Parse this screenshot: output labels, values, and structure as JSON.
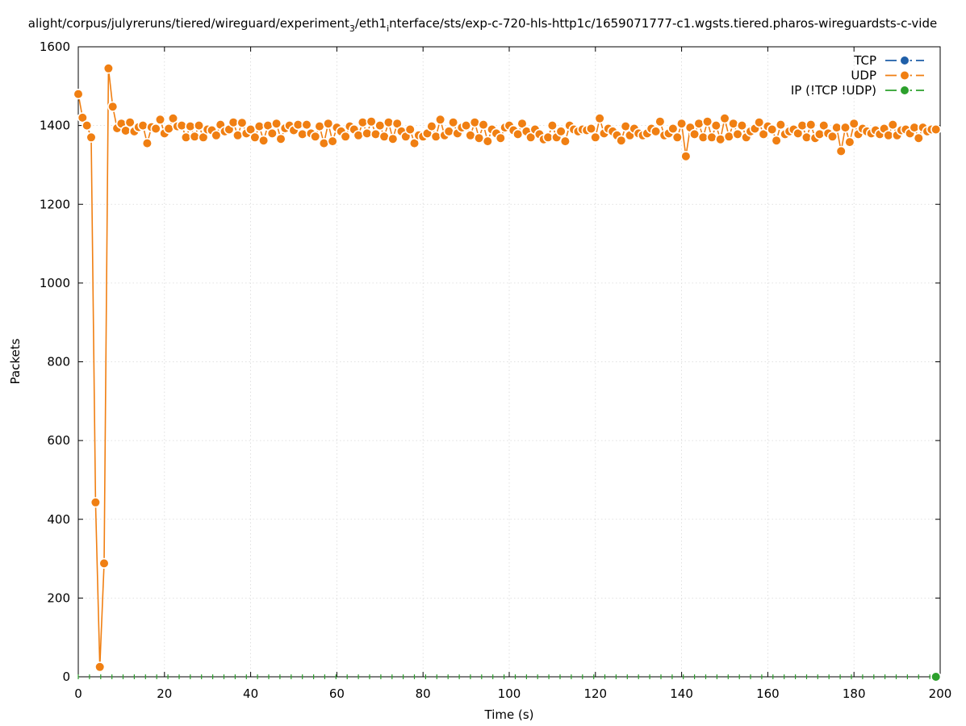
{
  "chart_data": {
    "type": "line",
    "title": "alight/corpus/julyreruns/tiered/wireguard/experiment",
    "title_sub1": "3",
    "title_mid": "/eth1",
    "title_sub2": "i",
    "title_end": "nterface/sts/exp-c-720-hls-http1c/1659071777-c1.wgsts.tiered.pharos-wireguardsts-c-vide",
    "xlabel": "Time (s)",
    "ylabel": "Packets",
    "xlim": [
      0,
      200
    ],
    "ylim": [
      0,
      1600
    ],
    "xticks": [
      0,
      20,
      40,
      60,
      80,
      100,
      120,
      140,
      160,
      180,
      200
    ],
    "yticks": [
      0,
      200,
      400,
      600,
      800,
      1000,
      1200,
      1400,
      1600
    ],
    "xtick_labels": [
      "0",
      "20",
      "40",
      "60",
      "80",
      "100",
      "120",
      "140",
      "160",
      "180",
      "200"
    ],
    "ytick_labels": [
      "0",
      "200",
      "400",
      "600",
      "800",
      "1000",
      "1200",
      "1400",
      "1600"
    ],
    "grid": true,
    "legend_position": "top-right",
    "series": [
      {
        "name": "TCP",
        "color": "#1f5fa8",
        "x": [],
        "values": []
      },
      {
        "name": "UDP",
        "color": "#f07f12",
        "x": [
          0,
          1,
          2,
          3,
          4,
          5,
          6,
          7,
          8,
          9,
          10,
          11,
          12,
          13,
          14,
          15,
          16,
          17,
          18,
          19,
          20,
          21,
          22,
          23,
          24,
          25,
          26,
          27,
          28,
          29,
          30,
          31,
          32,
          33,
          34,
          35,
          36,
          37,
          38,
          39,
          40,
          41,
          42,
          43,
          44,
          45,
          46,
          47,
          48,
          49,
          50,
          51,
          52,
          53,
          54,
          55,
          56,
          57,
          58,
          59,
          60,
          61,
          62,
          63,
          64,
          65,
          66,
          67,
          68,
          69,
          70,
          71,
          72,
          73,
          74,
          75,
          76,
          77,
          78,
          79,
          80,
          81,
          82,
          83,
          84,
          85,
          86,
          87,
          88,
          89,
          90,
          91,
          92,
          93,
          94,
          95,
          96,
          97,
          98,
          99,
          100,
          101,
          102,
          103,
          104,
          105,
          106,
          107,
          108,
          109,
          110,
          111,
          112,
          113,
          114,
          115,
          116,
          117,
          118,
          119,
          120,
          121,
          122,
          123,
          124,
          125,
          126,
          127,
          128,
          129,
          130,
          131,
          132,
          133,
          134,
          135,
          136,
          137,
          138,
          139,
          140,
          141,
          142,
          143,
          144,
          145,
          146,
          147,
          148,
          149,
          150,
          151,
          152,
          153,
          154,
          155,
          156,
          157,
          158,
          159,
          160,
          161,
          162,
          163,
          164,
          165,
          166,
          167,
          168,
          169,
          170,
          171,
          172,
          173,
          174,
          175,
          176,
          177,
          178,
          179,
          180,
          181,
          182,
          183,
          184,
          185,
          186,
          187,
          188,
          189,
          190,
          191,
          192,
          193,
          194,
          195,
          196,
          197,
          198,
          199
        ],
        "values": [
          1480,
          1420,
          1400,
          1370,
          443,
          25,
          288,
          1545,
          1448,
          1393,
          1405,
          1387,
          1408,
          1385,
          1396,
          1400,
          1355,
          1396,
          1392,
          1415,
          1380,
          1392,
          1418,
          1398,
          1400,
          1370,
          1398,
          1372,
          1400,
          1370,
          1390,
          1388,
          1375,
          1402,
          1385,
          1390,
          1408,
          1375,
          1407,
          1380,
          1390,
          1370,
          1398,
          1362,
          1400,
          1380,
          1405,
          1366,
          1393,
          1400,
          1388,
          1402,
          1378,
          1402,
          1380,
          1372,
          1398,
          1355,
          1405,
          1360,
          1395,
          1385,
          1372,
          1398,
          1390,
          1375,
          1408,
          1380,
          1410,
          1378,
          1400,
          1372,
          1408,
          1366,
          1405,
          1385,
          1372,
          1390,
          1355,
          1375,
          1372,
          1380,
          1398,
          1372,
          1415,
          1375,
          1385,
          1408,
          1380,
          1395,
          1400,
          1375,
          1408,
          1368,
          1402,
          1360,
          1390,
          1380,
          1368,
          1395,
          1400,
          1388,
          1378,
          1405,
          1385,
          1370,
          1390,
          1378,
          1365,
          1370,
          1400,
          1370,
          1385,
          1360,
          1400,
          1390,
          1385,
          1390,
          1388,
          1392,
          1370,
          1418,
          1380,
          1392,
          1385,
          1375,
          1362,
          1398,
          1375,
          1392,
          1380,
          1375,
          1380,
          1392,
          1385,
          1410,
          1375,
          1380,
          1392,
          1370,
          1405,
          1322,
          1395,
          1378,
          1405,
          1370,
          1410,
          1370,
          1400,
          1365,
          1418,
          1372,
          1405,
          1378,
          1400,
          1370,
          1385,
          1392,
          1408,
          1378,
          1398,
          1390,
          1362,
          1402,
          1378,
          1385,
          1390,
          1380,
          1400,
          1370,
          1402,
          1368,
          1378,
          1400,
          1380,
          1372,
          1395,
          1335,
          1395,
          1358,
          1405,
          1378,
          1392,
          1385,
          1380,
          1388,
          1378,
          1392,
          1375,
          1402,
          1375,
          1388,
          1390,
          1380,
          1395,
          1368,
          1395,
          1385,
          1390,
          1390
        ]
      },
      {
        "name": "IP (!TCP  !UDP)",
        "color": "#2ca02c",
        "x": [
          199
        ],
        "values": [
          0
        ]
      }
    ]
  }
}
